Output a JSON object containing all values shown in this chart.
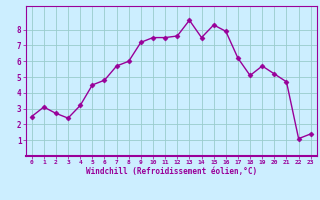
{
  "x": [
    0,
    1,
    2,
    3,
    4,
    5,
    6,
    7,
    8,
    9,
    10,
    11,
    12,
    13,
    14,
    15,
    16,
    17,
    18,
    19,
    20,
    21,
    22,
    23
  ],
  "y": [
    2.5,
    3.1,
    2.7,
    2.4,
    3.2,
    4.5,
    4.8,
    5.7,
    6.0,
    7.2,
    7.5,
    7.5,
    7.6,
    8.6,
    7.5,
    8.3,
    7.9,
    6.2,
    5.1,
    5.7,
    5.2,
    4.7,
    1.1,
    1.4
  ],
  "line_color": "#990099",
  "marker": "D",
  "markersize": 2.5,
  "linewidth": 1.0,
  "bg_color": "#cceeff",
  "grid_color": "#99cccc",
  "xlabel": "Windchill (Refroidissement éolien,°C)",
  "xlim": [
    -0.5,
    23.5
  ],
  "ylim": [
    0,
    9.5
  ],
  "xticks": [
    0,
    1,
    2,
    3,
    4,
    5,
    6,
    7,
    8,
    9,
    10,
    11,
    12,
    13,
    14,
    15,
    16,
    17,
    18,
    19,
    20,
    21,
    22,
    23
  ],
  "yticks": [
    1,
    2,
    3,
    4,
    5,
    6,
    7,
    8
  ],
  "tick_color": "#990099",
  "spine_color": "#990099",
  "label_color": "#990099"
}
